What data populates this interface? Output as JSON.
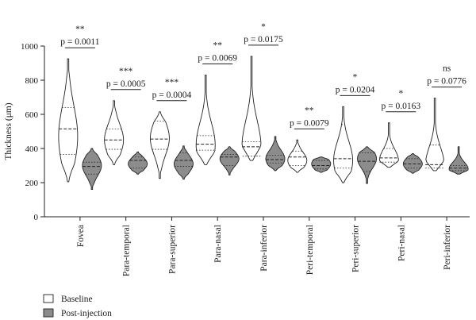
{
  "chart_data": {
    "type": "violin",
    "ylabel": "Thickness (μm)",
    "ylim": [
      0,
      1000
    ],
    "yticks": [
      "0",
      "200",
      "400",
      "600",
      "800",
      "1000"
    ],
    "categories": [
      "Fovea",
      "Para-temporal",
      "Para-superior",
      "Para-nasal",
      "Para-inferior",
      "Peri-temporal",
      "Peri-superior",
      "Peri-nasal",
      "Peri-inferior"
    ],
    "series": [
      {
        "name": "Baseline",
        "color": "#ffffff",
        "violins": [
          {
            "min": 205,
            "max": 925,
            "q1": 365,
            "median": 515,
            "q3": 640,
            "peak": 470
          },
          {
            "min": 305,
            "max": 680,
            "q1": 395,
            "median": 450,
            "q3": 515,
            "peak": 450
          },
          {
            "min": 225,
            "max": 615,
            "q1": 395,
            "median": 455,
            "q3": 560,
            "peak": 460
          },
          {
            "min": 305,
            "max": 830,
            "q1": 390,
            "median": 425,
            "q3": 475,
            "peak": 420
          },
          {
            "min": 330,
            "max": 940,
            "q1": 355,
            "median": 410,
            "q3": 440,
            "peak": 410
          },
          {
            "min": 260,
            "max": 450,
            "q1": 300,
            "median": 350,
            "q3": 385,
            "peak": 330
          },
          {
            "min": 200,
            "max": 645,
            "q1": 285,
            "median": 340,
            "q3": 540,
            "peak": 330
          },
          {
            "min": 290,
            "max": 550,
            "q1": 320,
            "median": 345,
            "q3": 400,
            "peak": 330
          },
          {
            "min": 270,
            "max": 695,
            "q1": 285,
            "median": 305,
            "q3": 420,
            "peak": 300
          }
        ]
      },
      {
        "name": "Post-injection",
        "color": "#8c8c8c",
        "violins": [
          {
            "min": 160,
            "max": 400,
            "q1": 250,
            "median": 295,
            "q3": 320,
            "peak": 300
          },
          {
            "min": 250,
            "max": 380,
            "q1": 285,
            "median": 330,
            "q3": 350,
            "peak": 310
          },
          {
            "min": 220,
            "max": 415,
            "q1": 295,
            "median": 330,
            "q3": 375,
            "peak": 310
          },
          {
            "min": 245,
            "max": 410,
            "q1": 300,
            "median": 350,
            "q3": 365,
            "peak": 340
          },
          {
            "min": 270,
            "max": 470,
            "q1": 315,
            "median": 335,
            "q3": 360,
            "peak": 340
          },
          {
            "min": 260,
            "max": 350,
            "q1": 280,
            "median": 300,
            "q3": 330,
            "peak": 310
          },
          {
            "min": 195,
            "max": 410,
            "q1": 265,
            "median": 325,
            "q3": 375,
            "peak": 340
          },
          {
            "min": 255,
            "max": 370,
            "q1": 285,
            "median": 310,
            "q3": 340,
            "peak": 310
          },
          {
            "min": 250,
            "max": 410,
            "q1": 270,
            "median": 285,
            "q3": 300,
            "peak": 280
          }
        ]
      }
    ],
    "significance": [
      {
        "stars": "**",
        "p": "p = 0.0011"
      },
      {
        "stars": "***",
        "p": "p = 0.0005"
      },
      {
        "stars": "***",
        "p": "p = 0.0004"
      },
      {
        "stars": "**",
        "p": "p = 0.0069"
      },
      {
        "stars": "*",
        "p": "p = 0.0175"
      },
      {
        "stars": "**",
        "p": "p = 0.0079"
      },
      {
        "stars": "*",
        "p": "p = 0.0204"
      },
      {
        "stars": "*",
        "p": "p = 0.0163"
      },
      {
        "stars": "ns",
        "p": "p = 0.0776"
      }
    ],
    "legend": [
      {
        "label": "Baseline",
        "color": "#ffffff"
      },
      {
        "label": "Post-injection",
        "color": "#8c8c8c"
      }
    ],
    "legend_position": "bottom-left",
    "grid": false
  }
}
